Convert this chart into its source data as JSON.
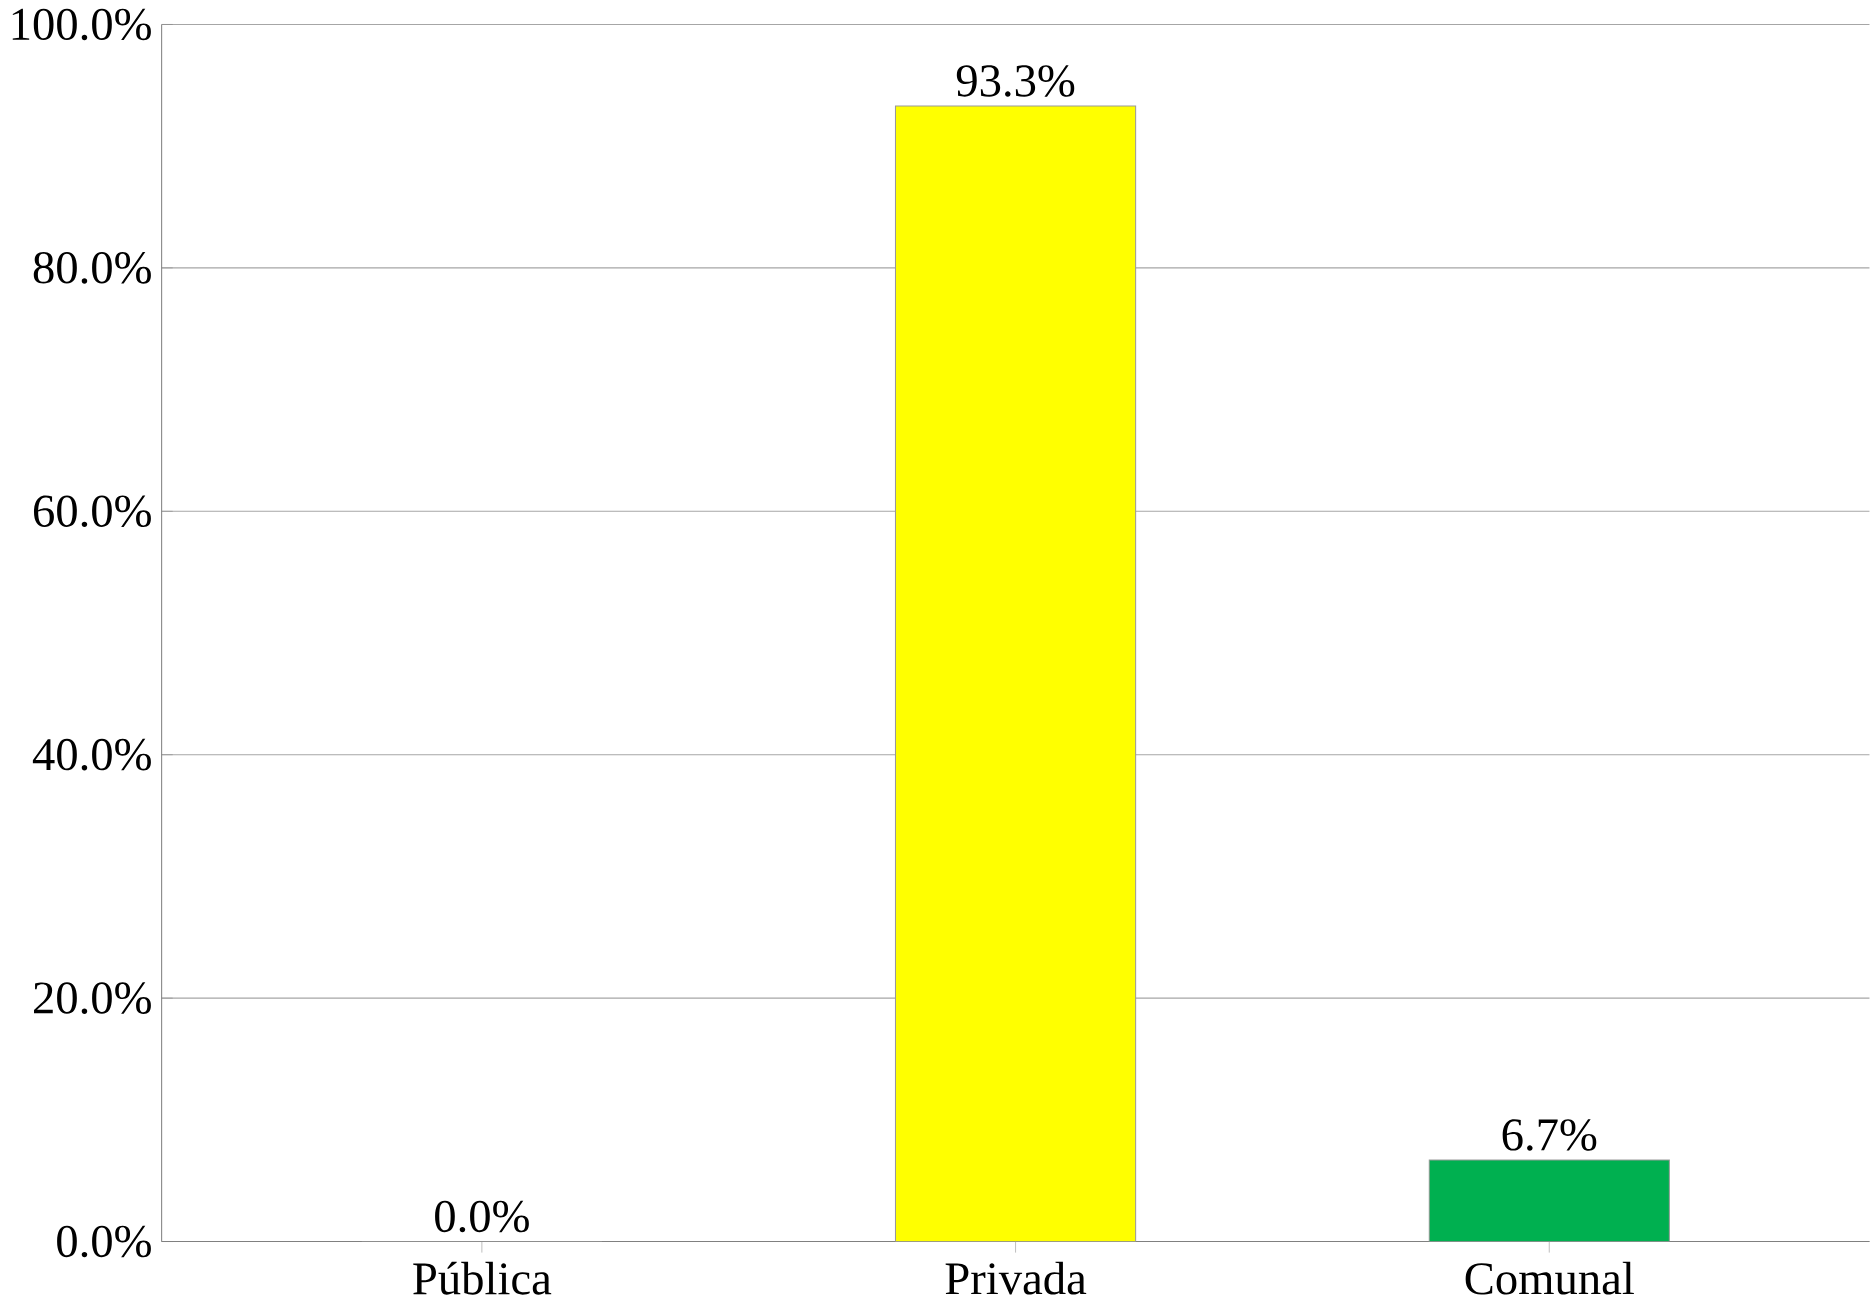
{
  "chart_data": {
    "type": "bar",
    "categories": [
      "Pública",
      "Privada",
      "Comunal"
    ],
    "values": [
      0.0,
      93.3,
      6.7
    ],
    "colors": [
      "#c00000",
      "#ffff00",
      "#00b050"
    ],
    "value_labels": [
      "0.0%",
      "93.3%",
      "6.7%"
    ],
    "ylim": [
      0,
      100
    ],
    "yticks": [
      {
        "value": 0,
        "label": "0.0%"
      },
      {
        "value": 20,
        "label": "20.0%"
      },
      {
        "value": 40,
        "label": "40.0%"
      },
      {
        "value": 60,
        "label": "60.0%"
      },
      {
        "value": 80,
        "label": "80.0%"
      },
      {
        "value": 100,
        "label": "100.0%"
      }
    ],
    "grid": "y"
  }
}
